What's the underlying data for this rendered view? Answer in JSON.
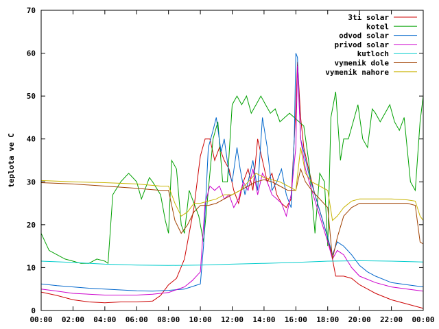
{
  "chart_data": {
    "type": "line",
    "title": "",
    "xlabel": "",
    "ylabel": "teplota ve C",
    "ylim": [
      0,
      70
    ],
    "xlim": [
      "00:00",
      "24:00"
    ],
    "yticks": [
      "0",
      "10",
      "20",
      "30",
      "40",
      "50",
      "60",
      "70"
    ],
    "xticks": [
      "00:00",
      "02:00",
      "04:00",
      "06:00",
      "08:00",
      "10:00",
      "12:00",
      "14:00",
      "16:00",
      "18:00",
      "20:00",
      "22:00",
      "00:00"
    ],
    "grid": false,
    "legend": "top-right",
    "series": [
      {
        "name": "3ti solar",
        "color": "#cc0000",
        "x": [
          0,
          1,
          2,
          3,
          4,
          5,
          6,
          7,
          7.5,
          8,
          8.5,
          9,
          9.3,
          9.6,
          9.8,
          10,
          10.3,
          10.6,
          10.9,
          11.2,
          11.5,
          11.8,
          12.1,
          12.4,
          12.7,
          13,
          13.3,
          13.6,
          13.9,
          14.2,
          14.5,
          14.8,
          15.1,
          15.4,
          15.7,
          16,
          16.1,
          16.3,
          16.5,
          16.8,
          17.2,
          17.6,
          18,
          18.3,
          18.5,
          19,
          19.5,
          20,
          20.5,
          21,
          22,
          23,
          24
        ],
        "y": [
          4.3,
          3.5,
          2.5,
          2,
          1.8,
          2,
          2,
          2.2,
          3.5,
          6,
          7.5,
          12,
          18,
          24,
          30,
          36,
          40,
          40,
          35,
          38,
          35,
          33,
          28,
          25,
          30,
          33,
          28,
          40,
          35,
          30,
          32,
          27,
          25,
          24,
          26,
          47,
          58,
          45,
          38,
          33,
          27,
          22,
          17,
          12,
          8,
          8,
          7.5,
          6,
          5,
          4,
          2.5,
          1.5,
          0.5
        ]
      },
      {
        "name": "kotel",
        "color": "#00a000",
        "x": [
          0,
          0.5,
          1,
          1.5,
          2,
          2.5,
          3,
          3.5,
          4,
          4.2,
          4.5,
          5,
          5.5,
          6,
          6.3,
          6.5,
          6.8,
          7,
          7.5,
          7.8,
          8,
          8.2,
          8.5,
          8.8,
          9,
          9.3,
          9.6,
          9.9,
          10.2,
          10.5,
          10.8,
          11.1,
          11.4,
          11.7,
          12,
          12.3,
          12.6,
          12.9,
          13.2,
          13.5,
          13.8,
          14.1,
          14.4,
          14.7,
          15,
          15.3,
          15.6,
          15.9,
          16.2,
          16.5,
          16.8,
          17,
          17.2,
          17.5,
          17.8,
          18,
          18.2,
          18.5,
          18.8,
          19,
          19.3,
          19.6,
          19.9,
          20.2,
          20.5,
          20.8,
          21,
          21.3,
          21.6,
          21.9,
          22.2,
          22.5,
          22.8,
          23.2,
          23.5,
          23.8,
          24
        ],
        "y": [
          18,
          14,
          13,
          12,
          11.5,
          11,
          11,
          12,
          11.5,
          11,
          27,
          30,
          32,
          30,
          26,
          28,
          31,
          30,
          27,
          21,
          18,
          35,
          33,
          20,
          18,
          28,
          25,
          22,
          16,
          28,
          40,
          44,
          30,
          30,
          48,
          50,
          48,
          50,
          46,
          48,
          50,
          48,
          46,
          47,
          44,
          45,
          46,
          45,
          44,
          43,
          35,
          27,
          18,
          32,
          30,
          15,
          45,
          51,
          35,
          40,
          40,
          44,
          48,
          40,
          38,
          47,
          46,
          44,
          46,
          48,
          44,
          42,
          45,
          30,
          28,
          44,
          50
        ]
      },
      {
        "name": "odvod solar",
        "color": "#0066cc",
        "x": [
          0,
          1,
          2,
          3,
          4,
          5,
          6,
          7,
          8,
          9,
          9.5,
          10,
          10.2,
          10.5,
          10.8,
          11,
          11.3,
          11.5,
          11.8,
          12,
          12.3,
          12.5,
          12.8,
          13,
          13.3,
          13.6,
          13.9,
          14.2,
          14.5,
          14.8,
          15.1,
          15.4,
          15.7,
          15.9,
          16,
          16.1,
          16.3,
          16.5,
          16.8,
          17.2,
          17.6,
          18,
          18.3,
          18.6,
          19,
          19.5,
          20,
          20.5,
          21,
          22,
          23,
          24
        ],
        "y": [
          6.2,
          5.8,
          5.5,
          5.2,
          5,
          4.8,
          4.6,
          4.5,
          4.7,
          5,
          5.6,
          6.2,
          15,
          38,
          42,
          45,
          37,
          40,
          32,
          30,
          38,
          33,
          27,
          30,
          35,
          28,
          45,
          38,
          28,
          30,
          33,
          27,
          24,
          40,
          60,
          59,
          40,
          37,
          32,
          27,
          22,
          17,
          13,
          16,
          15,
          13,
          10.5,
          9,
          8,
          6.5,
          6,
          5.5
        ]
      },
      {
        "name": "privod solar",
        "color": "#cc00cc",
        "x": [
          0,
          1,
          2,
          3,
          4,
          5,
          6,
          7,
          8,
          9,
          9.5,
          10,
          10.3,
          10.6,
          10.9,
          11.2,
          11.5,
          11.8,
          12.1,
          12.4,
          12.7,
          13,
          13.3,
          13.6,
          13.9,
          14.2,
          14.5,
          14.8,
          15.1,
          15.4,
          15.7,
          16,
          16.1,
          16.3,
          16.6,
          17,
          17.5,
          18,
          18.3,
          18.6,
          19,
          19.5,
          20,
          21,
          22,
          23,
          24
        ],
        "y": [
          5,
          4.5,
          4,
          3.8,
          3.6,
          3.6,
          3.6,
          3.8,
          4.2,
          5.5,
          7,
          9,
          25,
          29,
          28,
          29,
          26,
          27,
          24,
          26,
          30,
          28,
          33,
          27,
          32,
          30,
          27,
          26,
          25,
          22,
          27,
          38,
          57,
          40,
          33,
          28,
          22,
          16,
          12,
          14,
          13,
          10,
          8,
          6.5,
          5.5,
          5,
          4.5
        ]
      },
      {
        "name": "kutloch",
        "color": "#00cccc",
        "x": [
          0,
          2,
          4,
          6,
          8,
          10,
          12,
          14,
          16,
          18,
          20,
          22,
          24
        ],
        "y": [
          11.5,
          11.2,
          10.8,
          10.6,
          10.5,
          10.6,
          10.8,
          11,
          11.2,
          11.5,
          11.6,
          11.5,
          11.3
        ]
      },
      {
        "name": "vymenik dole",
        "color": "#a04000",
        "x": [
          0,
          2,
          4,
          6,
          7.5,
          8,
          8.4,
          8.8,
          9.2,
          9.6,
          10,
          10.5,
          11,
          11.5,
          12,
          12.5,
          13,
          13.5,
          14,
          14.5,
          15,
          15.5,
          16,
          16.3,
          16.6,
          17,
          17.5,
          18,
          18.3,
          18.6,
          19,
          19.5,
          20,
          21,
          22,
          23,
          23.5,
          23.8,
          24
        ],
        "y": [
          29.8,
          29.5,
          29,
          28.5,
          28,
          28,
          21,
          18,
          20,
          23,
          24.5,
          24.5,
          25,
          26,
          27,
          28,
          29,
          30,
          30.5,
          30,
          29,
          28,
          28,
          33,
          30,
          28,
          26,
          24,
          12,
          17,
          22,
          24,
          25,
          25,
          25,
          25,
          24.5,
          16,
          15.5
        ]
      },
      {
        "name": "vymenik nahore",
        "color": "#c8b400",
        "x": [
          0,
          2,
          4,
          6,
          7.5,
          8,
          8.4,
          8.8,
          9.2,
          9.6,
          10,
          10.5,
          11,
          11.5,
          12,
          12.5,
          13,
          13.5,
          14,
          14.5,
          15,
          15.5,
          16,
          16.3,
          16.6,
          17,
          17.5,
          18,
          18.3,
          18.6,
          19,
          19.5,
          20,
          21,
          22,
          23,
          23.5,
          23.8,
          24
        ],
        "y": [
          30.3,
          30,
          29.8,
          29.5,
          29,
          29,
          25,
          22,
          23,
          25,
          25,
          25.5,
          26,
          27,
          27,
          28,
          30,
          32,
          31,
          30.5,
          30,
          29,
          28,
          38,
          32,
          30,
          29,
          28,
          21,
          22,
          24,
          25.5,
          26,
          26,
          26,
          25.8,
          25.5,
          22,
          21
        ]
      }
    ]
  }
}
